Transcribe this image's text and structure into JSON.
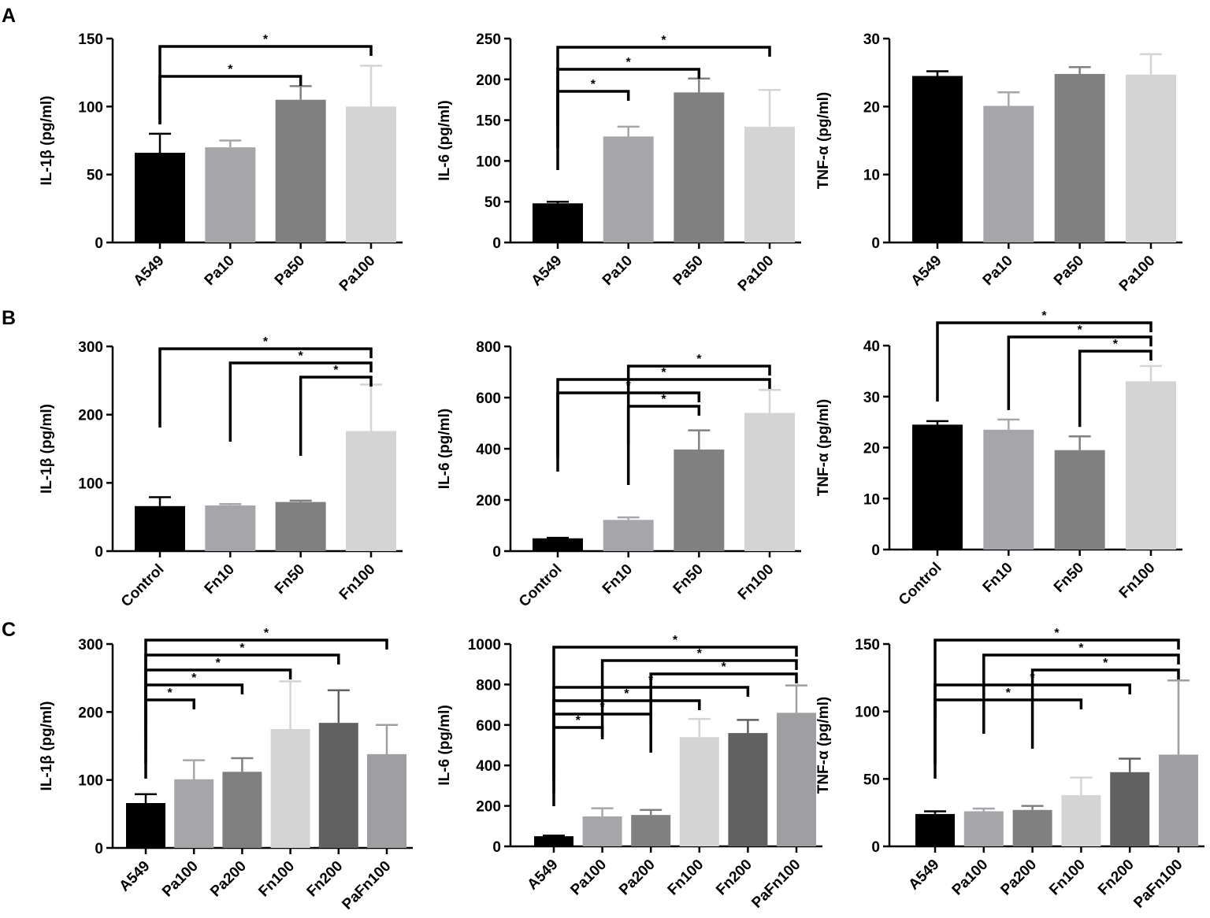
{
  "figure_labels": [
    "A",
    "B",
    "C"
  ],
  "palette": {
    "black": "#000000",
    "light_gray": "#a6a6aa",
    "mid_gray": "#808080",
    "pale_gray": "#d4d4d4",
    "dark_gray": "#616161",
    "sig_gray": "#9e9ea3"
  },
  "chart_data": [
    {
      "panel": "A",
      "type": "bar",
      "ylabel": "IL-1β (pg/ml)",
      "ylim": [
        0,
        150
      ],
      "yticks": [
        "0",
        "50",
        "100",
        "150"
      ],
      "categories": [
        "A549",
        "Pa10",
        "Pa50",
        "Pa100"
      ],
      "values": [
        66,
        70,
        105,
        100
      ],
      "errors": [
        14,
        5,
        10,
        30
      ],
      "colors": [
        "black",
        "light_gray",
        "mid_gray",
        "pale_gray"
      ],
      "significance": [
        {
          "from": 0,
          "to": 3,
          "label": "*",
          "level": 0
        },
        {
          "from": 0,
          "to": 2,
          "label": "*",
          "level": 1
        }
      ]
    },
    {
      "panel": "A",
      "type": "bar",
      "ylabel": "IL-6 (pg/ml)",
      "ylim": [
        0,
        250
      ],
      "yticks": [
        "0",
        "50",
        "100",
        "150",
        "200",
        "250"
      ],
      "categories": [
        "A549",
        "Pa10",
        "Pa50",
        "Pa100"
      ],
      "values": [
        48,
        130,
        184,
        142
      ],
      "errors": [
        2,
        12,
        17,
        45
      ],
      "colors": [
        "black",
        "light_gray",
        "mid_gray",
        "pale_gray"
      ],
      "significance": [
        {
          "from": 0,
          "to": 3,
          "label": "*",
          "level": 0
        },
        {
          "from": 0,
          "to": 2,
          "label": "*",
          "level": 1
        },
        {
          "from": 0,
          "to": 1,
          "label": "*",
          "level": 2
        }
      ]
    },
    {
      "panel": "A",
      "type": "bar",
      "ylabel": "TNF-α (pg/ml)",
      "ylim": [
        0,
        30
      ],
      "yticks": [
        "0",
        "10",
        "20",
        "30"
      ],
      "categories": [
        "A549",
        "Pa10",
        "Pa50",
        "Pa100"
      ],
      "values": [
        24.5,
        20.1,
        24.8,
        24.7
      ],
      "errors": [
        0.7,
        2.0,
        1.0,
        3.0
      ],
      "colors": [
        "black",
        "light_gray",
        "mid_gray",
        "pale_gray"
      ],
      "significance": []
    },
    {
      "panel": "B",
      "type": "bar",
      "ylabel": "IL-1β (pg/ml)",
      "ylim": [
        0,
        300
      ],
      "yticks": [
        "0",
        "100",
        "200",
        "300"
      ],
      "categories": [
        "Control",
        "Fn10",
        "Fn50",
        "Fn100"
      ],
      "values": [
        66,
        67,
        72,
        176
      ],
      "errors": [
        13,
        2,
        2,
        68
      ],
      "colors": [
        "black",
        "light_gray",
        "mid_gray",
        "pale_gray"
      ],
      "significance": [
        {
          "from": 0,
          "to": 3,
          "label": "*",
          "level": 0
        },
        {
          "from": 1,
          "to": 3,
          "label": "*",
          "level": 1
        },
        {
          "from": 2,
          "to": 3,
          "label": "*",
          "level": 2
        }
      ]
    },
    {
      "panel": "B",
      "type": "bar",
      "ylabel": "IL-6 (pg/ml)",
      "ylim": [
        0,
        800
      ],
      "yticks": [
        "0",
        "200",
        "400",
        "600",
        "800"
      ],
      "categories": [
        "Control",
        "Fn10",
        "Fn50",
        "Fn100"
      ],
      "values": [
        50,
        122,
        397,
        540
      ],
      "errors": [
        2,
        10,
        75,
        90
      ],
      "colors": [
        "black",
        "light_gray",
        "mid_gray",
        "pale_gray"
      ],
      "significance": [
        {
          "from": 1,
          "to": 3,
          "label": "*",
          "level": 0
        },
        {
          "from": 0,
          "to": 3,
          "label": "*",
          "level": 1
        },
        {
          "from": 0,
          "to": 2,
          "label": "*",
          "level": 2
        },
        {
          "from": 1,
          "to": 2,
          "label": "*",
          "level": 3
        }
      ]
    },
    {
      "panel": "B",
      "type": "bar",
      "ylabel": "TNF-α (pg/ml)",
      "ylim": [
        0,
        40
      ],
      "yticks": [
        "0",
        "10",
        "20",
        "30",
        "40"
      ],
      "categories": [
        "Control",
        "Fn10",
        "Fn50",
        "Fn100"
      ],
      "values": [
        24.5,
        23.5,
        19.5,
        33
      ],
      "errors": [
        0.7,
        2.0,
        2.7,
        3.0
      ],
      "colors": [
        "black",
        "light_gray",
        "mid_gray",
        "pale_gray"
      ],
      "significance": [
        {
          "from": 0,
          "to": 3,
          "label": "*",
          "level": 0
        },
        {
          "from": 1,
          "to": 3,
          "label": "*",
          "level": 1
        },
        {
          "from": 2,
          "to": 3,
          "label": "*",
          "level": 2
        }
      ]
    },
    {
      "panel": "C",
      "type": "bar",
      "ylabel": "IL-1β (pg/ml)",
      "ylim": [
        0,
        300
      ],
      "yticks": [
        "0",
        "100",
        "200",
        "300"
      ],
      "categories": [
        "A549",
        "Pa100",
        "Pa200",
        "Fn100",
        "Fn200",
        "PaFn100"
      ],
      "values": [
        66,
        101,
        112,
        175,
        184,
        138
      ],
      "errors": [
        13,
        28,
        20,
        70,
        48,
        43
      ],
      "colors": [
        "black",
        "light_gray",
        "mid_gray",
        "pale_gray",
        "dark_gray",
        "sig_gray"
      ],
      "significance": [
        {
          "from": 0,
          "to": 5,
          "label": "*",
          "level": 0
        },
        {
          "from": 0,
          "to": 4,
          "label": "*",
          "level": 1
        },
        {
          "from": 0,
          "to": 3,
          "label": "*",
          "level": 2
        },
        {
          "from": 0,
          "to": 2,
          "label": "*",
          "level": 3
        },
        {
          "from": 0,
          "to": 1,
          "label": "*",
          "level": 4
        }
      ]
    },
    {
      "panel": "C",
      "type": "bar",
      "ylabel": "IL-6 (pg/ml)",
      "ylim": [
        0,
        1000
      ],
      "yticks": [
        "0",
        "200",
        "400",
        "600",
        "800",
        "1000"
      ],
      "categories": [
        "A549",
        "Pa100",
        "Pa200",
        "Fn100",
        "Fn200",
        "PaFn100"
      ],
      "values": [
        50,
        148,
        155,
        540,
        560,
        660
      ],
      "errors": [
        3,
        40,
        25,
        90,
        65,
        135
      ],
      "colors": [
        "black",
        "light_gray",
        "mid_gray",
        "pale_gray",
        "dark_gray",
        "sig_gray"
      ],
      "significance": [
        {
          "from": 0,
          "to": 5,
          "label": "*",
          "level": 0
        },
        {
          "from": 1,
          "to": 5,
          "label": "*",
          "level": 1
        },
        {
          "from": 2,
          "to": 5,
          "label": "*",
          "level": 2
        },
        {
          "from": 0,
          "to": 4,
          "label": "*",
          "level": 3
        },
        {
          "from": 0,
          "to": 3,
          "label": "*",
          "level": 4
        },
        {
          "from": 0,
          "to": 2,
          "label": "*",
          "level": 5
        },
        {
          "from": 0,
          "to": 1,
          "label": "*",
          "level": 6
        }
      ]
    },
    {
      "panel": "C",
      "type": "bar",
      "ylabel": "TNF-α (pg/ml)",
      "ylim": [
        0,
        150
      ],
      "yticks": [
        "0",
        "50",
        "100",
        "150"
      ],
      "categories": [
        "A549",
        "Pa100",
        "Pa200",
        "Fn100",
        "Fn200",
        "PaFn100"
      ],
      "values": [
        24,
        26,
        27,
        38,
        55,
        68
      ],
      "errors": [
        2,
        2,
        3,
        13,
        10,
        55
      ],
      "colors": [
        "black",
        "light_gray",
        "mid_gray",
        "pale_gray",
        "dark_gray",
        "sig_gray"
      ],
      "significance": [
        {
          "from": 0,
          "to": 5,
          "label": "*",
          "level": 0
        },
        {
          "from": 1,
          "to": 5,
          "label": "*",
          "level": 1
        },
        {
          "from": 2,
          "to": 5,
          "label": "*",
          "level": 2
        },
        {
          "from": 0,
          "to": 4,
          "label": "*",
          "level": 3
        },
        {
          "from": 0,
          "to": 3,
          "label": "*",
          "level": 4
        }
      ]
    }
  ]
}
